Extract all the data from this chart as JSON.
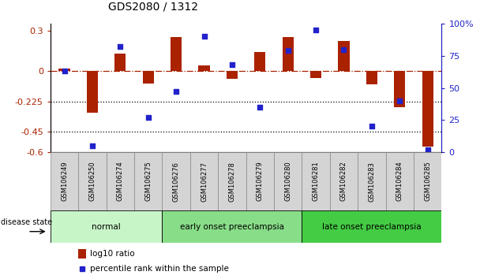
{
  "title": "GDS2080 / 1312",
  "samples": [
    "GSM106249",
    "GSM106250",
    "GSM106274",
    "GSM106275",
    "GSM106276",
    "GSM106277",
    "GSM106278",
    "GSM106279",
    "GSM106280",
    "GSM106281",
    "GSM106282",
    "GSM106283",
    "GSM106284",
    "GSM106285"
  ],
  "log10_ratio": [
    0.02,
    -0.31,
    0.13,
    -0.09,
    0.25,
    0.04,
    -0.06,
    0.14,
    0.25,
    -0.05,
    0.22,
    -0.1,
    -0.27,
    -0.56
  ],
  "percentile_rank": [
    63,
    5,
    82,
    27,
    47,
    90,
    68,
    35,
    79,
    95,
    80,
    20,
    40,
    2
  ],
  "groups": [
    {
      "label": "normal",
      "start": 0,
      "end": 4,
      "color": "#c8f5c8"
    },
    {
      "label": "early onset preeclampsia",
      "start": 4,
      "end": 9,
      "color": "#88dd88"
    },
    {
      "label": "late onset preeclampsia",
      "start": 9,
      "end": 14,
      "color": "#44cc44"
    }
  ],
  "ylim_left": [
    -0.6,
    0.35
  ],
  "ylim_right": [
    0,
    100
  ],
  "yticks_left": [
    -0.6,
    -0.45,
    -0.225,
    0.0,
    0.3
  ],
  "yticks_right": [
    0,
    25,
    50,
    75,
    100
  ],
  "ytick_labels_left": [
    "-0.6",
    "-0.45",
    "-0.225",
    "0",
    "0.3"
  ],
  "ytick_labels_right": [
    "0",
    "25",
    "50",
    "75",
    "100%"
  ],
  "hlines": [
    -0.225,
    -0.45
  ],
  "bar_color": "#aa2200",
  "dot_color": "#2222cc",
  "legend_items": [
    "log10 ratio",
    "percentile rank within the sample"
  ],
  "disease_state_label": "disease state",
  "sample_box_color": "#d4d4d4",
  "sample_box_edge": "#888888",
  "background_color": "#ffffff",
  "bar_width": 0.4
}
